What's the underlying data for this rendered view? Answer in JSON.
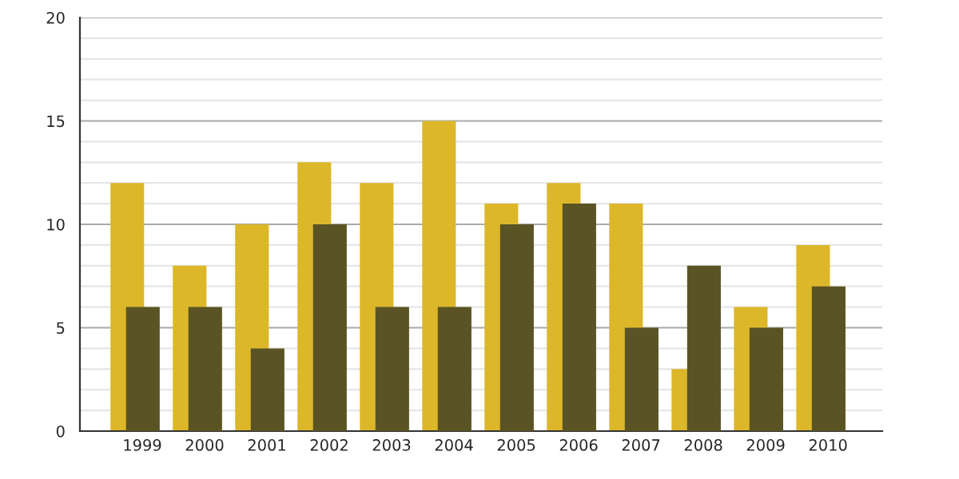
{
  "chart_data": {
    "type": "bar",
    "categories": [
      "1999",
      "2000",
      "2001",
      "2002",
      "2003",
      "2004",
      "2005",
      "2006",
      "2007",
      "2008",
      "2009",
      "2010"
    ],
    "series": [
      {
        "color": "#dcb72a",
        "values": [
          12,
          8,
          10,
          13,
          12,
          15,
          11,
          12,
          11,
          3,
          6,
          9
        ]
      },
      {
        "color": "#5a5424",
        "values": [
          6,
          6,
          4,
          10,
          6,
          6,
          10,
          11,
          5,
          8,
          5,
          7
        ]
      }
    ],
    "ylim": [
      0,
      20
    ],
    "yticks": [
      0,
      {
        "value": 1,
        "label": null
      },
      {
        "value": 2,
        "label": null
      },
      {
        "value": 3,
        "label": null
      },
      {
        "value": 4,
        "label": null
      },
      5,
      {
        "value": 6,
        "label": null
      },
      {
        "value": 7,
        "label": null
      },
      {
        "value": 8,
        "label": null
      },
      {
        "value": 9,
        "label": null
      },
      10,
      {
        "value": 11,
        "label": null
      },
      {
        "value": 12,
        "label": null
      },
      {
        "value": 13,
        "label": null
      },
      {
        "value": 14,
        "label": null
      },
      15,
      {
        "value": 16,
        "label": null
      },
      {
        "value": 17,
        "label": null
      },
      {
        "value": 18,
        "label": null
      },
      {
        "value": 19,
        "label": null
      },
      20
    ],
    "grid": "y"
  }
}
